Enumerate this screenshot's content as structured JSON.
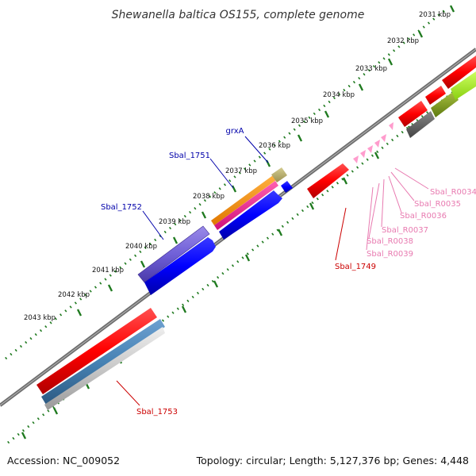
{
  "title": "Shewanella baltica OS155, complete genome",
  "accession": "Accession: NC_009052",
  "summary": "Topology: circular; Length: 5,127,376 bp; Genes: 4,448",
  "colors": {
    "backbone": "#777777",
    "tick": "#1f7a1f",
    "forward_label": "#0000aa",
    "reverse_label": "#cc0000",
    "rna_label": "#e87ab0"
  },
  "ticks": [
    {
      "label": "2031 kbp"
    },
    {
      "label": "2032 kbp"
    },
    {
      "label": "2033 kbp"
    },
    {
      "label": "2034 kbp"
    },
    {
      "label": "2035 kbp"
    },
    {
      "label": "2036 kbp"
    },
    {
      "label": "2037 kbp"
    },
    {
      "label": "2038 kbp"
    },
    {
      "label": "2039 kbp"
    },
    {
      "label": "2040 kbp"
    },
    {
      "label": "2041 kbp"
    },
    {
      "label": "2042 kbp"
    },
    {
      "label": "2043 kbp"
    }
  ],
  "gene_labels": [
    {
      "text": "grxA",
      "kind": "forward"
    },
    {
      "text": "Sbal_1751",
      "kind": "forward"
    },
    {
      "text": "Sbal_1752",
      "kind": "forward"
    },
    {
      "text": "Sbal_1749",
      "kind": "reverse"
    },
    {
      "text": "Sbal_1753",
      "kind": "reverse"
    },
    {
      "text": "Sbal_R0034",
      "kind": "rna"
    },
    {
      "text": "Sbal_R0035",
      "kind": "rna"
    },
    {
      "text": "Sbal_R0036",
      "kind": "rna"
    },
    {
      "text": "Sbal_R0037",
      "kind": "rna"
    },
    {
      "text": "Sbal_R0038",
      "kind": "rna"
    },
    {
      "text": "Sbal_R0039",
      "kind": "rna"
    }
  ]
}
